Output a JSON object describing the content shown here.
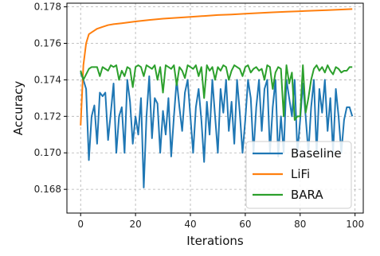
{
  "chart_data": {
    "type": "line",
    "xlabel": "Iterations",
    "ylabel": "Accuracy",
    "xlim": [
      -5,
      103
    ],
    "ylim": [
      0.1667,
      0.1782
    ],
    "xticks": [
      0,
      20,
      40,
      60,
      80,
      100
    ],
    "xtick_labels": [
      "0",
      "20",
      "40",
      "60",
      "80",
      "100"
    ],
    "yticks": [
      0.168,
      0.17,
      0.172,
      0.174,
      0.176,
      0.178
    ],
    "ytick_labels": [
      "0.168",
      "0.170",
      "0.172",
      "0.174",
      "0.176",
      "0.178"
    ],
    "grid": true,
    "legend_position": "lower-right",
    "series": [
      {
        "name": "Baseline",
        "color": "#1f77b4",
        "x": [
          0,
          1,
          2,
          3,
          4,
          5,
          6,
          7,
          8,
          9,
          10,
          11,
          12,
          13,
          14,
          15,
          16,
          17,
          18,
          19,
          20,
          21,
          22,
          23,
          24,
          25,
          26,
          27,
          28,
          29,
          30,
          31,
          32,
          33,
          34,
          35,
          36,
          37,
          38,
          39,
          40,
          41,
          42,
          43,
          44,
          45,
          46,
          47,
          48,
          49,
          50,
          51,
          52,
          53,
          54,
          55,
          56,
          57,
          58,
          59,
          60,
          61,
          62,
          63,
          64,
          65,
          66,
          67,
          68,
          69,
          70,
          71,
          72,
          73,
          74,
          75,
          76,
          77,
          78,
          79,
          80,
          81,
          82,
          83,
          84,
          85,
          86,
          87,
          88,
          89,
          90,
          91,
          92,
          93,
          94,
          95,
          96,
          97,
          98,
          99
        ],
        "values": [
          0.1744,
          0.174,
          0.1735,
          0.1696,
          0.172,
          0.1726,
          0.1705,
          0.1733,
          0.1731,
          0.1733,
          0.1707,
          0.1722,
          0.1738,
          0.17,
          0.172,
          0.1725,
          0.17,
          0.174,
          0.1728,
          0.1705,
          0.172,
          0.171,
          0.173,
          0.1681,
          0.172,
          0.1742,
          0.1708,
          0.173,
          0.1727,
          0.17,
          0.1723,
          0.171,
          0.173,
          0.1698,
          0.172,
          0.174,
          0.1725,
          0.1712,
          0.1733,
          0.174,
          0.172,
          0.17,
          0.1725,
          0.1735,
          0.1718,
          0.1695,
          0.1728,
          0.171,
          0.174,
          0.172,
          0.17,
          0.1735,
          0.1722,
          0.174,
          0.1712,
          0.1728,
          0.1705,
          0.174,
          0.1722,
          0.17,
          0.1718,
          0.174,
          0.173,
          0.17,
          0.1725,
          0.174,
          0.1712,
          0.1735,
          0.174,
          0.17,
          0.1725,
          0.174,
          0.1698,
          0.172,
          0.17,
          0.174,
          0.173,
          0.172,
          0.174,
          0.17,
          0.1718,
          0.1738,
          0.172,
          0.17,
          0.1725,
          0.174,
          0.17,
          0.1735,
          0.1722,
          0.174,
          0.1712,
          0.173,
          0.17,
          0.1735,
          0.172,
          0.17,
          0.1718,
          0.1725,
          0.1725,
          0.172
        ]
      },
      {
        "name": "LiFi",
        "color": "#ff7f0e",
        "x": [
          0,
          1,
          2,
          3,
          4,
          5,
          6,
          8,
          10,
          12,
          15,
          20,
          25,
          30,
          35,
          40,
          45,
          50,
          55,
          60,
          65,
          70,
          75,
          80,
          85,
          90,
          95,
          99
        ],
        "values": [
          0.1715,
          0.1748,
          0.176,
          0.1765,
          0.1766,
          0.1767,
          0.1768,
          0.1769,
          0.177,
          0.17705,
          0.1771,
          0.1772,
          0.17728,
          0.17735,
          0.1774,
          0.17745,
          0.1775,
          0.17755,
          0.17758,
          0.17762,
          0.17766,
          0.1777,
          0.17773,
          0.17776,
          0.17779,
          0.17782,
          0.17785,
          0.17788
        ]
      },
      {
        "name": "BARA",
        "color": "#2ca02c",
        "x": [
          0,
          1,
          2,
          3,
          4,
          5,
          6,
          7,
          8,
          9,
          10,
          11,
          12,
          13,
          14,
          15,
          16,
          17,
          18,
          19,
          20,
          21,
          22,
          23,
          24,
          25,
          26,
          27,
          28,
          29,
          30,
          31,
          32,
          33,
          34,
          35,
          36,
          37,
          38,
          39,
          40,
          41,
          42,
          43,
          44,
          45,
          46,
          47,
          48,
          49,
          50,
          51,
          52,
          53,
          54,
          55,
          56,
          57,
          58,
          59,
          60,
          61,
          62,
          63,
          64,
          65,
          66,
          67,
          68,
          69,
          70,
          71,
          72,
          73,
          74,
          75,
          76,
          77,
          78,
          79,
          80,
          81,
          82,
          83,
          84,
          85,
          86,
          87,
          88,
          89,
          90,
          91,
          92,
          93,
          94,
          95,
          96,
          97,
          98,
          99
        ],
        "values": [
          0.1745,
          0.174,
          0.1743,
          0.1746,
          0.1747,
          0.1747,
          0.1747,
          0.1742,
          0.1747,
          0.1746,
          0.1745,
          0.1748,
          0.1747,
          0.1748,
          0.174,
          0.1745,
          0.1742,
          0.1747,
          0.1746,
          0.1736,
          0.1747,
          0.1748,
          0.1747,
          0.1742,
          0.1748,
          0.1747,
          0.1746,
          0.1748,
          0.174,
          0.1747,
          0.1733,
          0.1748,
          0.1747,
          0.1746,
          0.1748,
          0.1737,
          0.1747,
          0.1745,
          0.1741,
          0.1748,
          0.1747,
          0.1746,
          0.1748,
          0.1742,
          0.1747,
          0.173,
          0.1748,
          0.1745,
          0.1747,
          0.174,
          0.1747,
          0.1745,
          0.1748,
          0.1747,
          0.174,
          0.1745,
          0.1748,
          0.1747,
          0.1746,
          0.1742,
          0.1747,
          0.1748,
          0.1744,
          0.1746,
          0.1747,
          0.1745,
          0.1746,
          0.174,
          0.1748,
          0.1747,
          0.1735,
          0.1744,
          0.1747,
          0.1746,
          0.172,
          0.1748,
          0.1738,
          0.1744,
          0.1718,
          0.172,
          0.172,
          0.1748,
          0.1722,
          0.173,
          0.174,
          0.1746,
          0.1748,
          0.1745,
          0.1747,
          0.1744,
          0.1748,
          0.1745,
          0.1743,
          0.1747,
          0.1746,
          0.1744,
          0.1745,
          0.1745,
          0.1747,
          0.1747
        ]
      }
    ]
  }
}
